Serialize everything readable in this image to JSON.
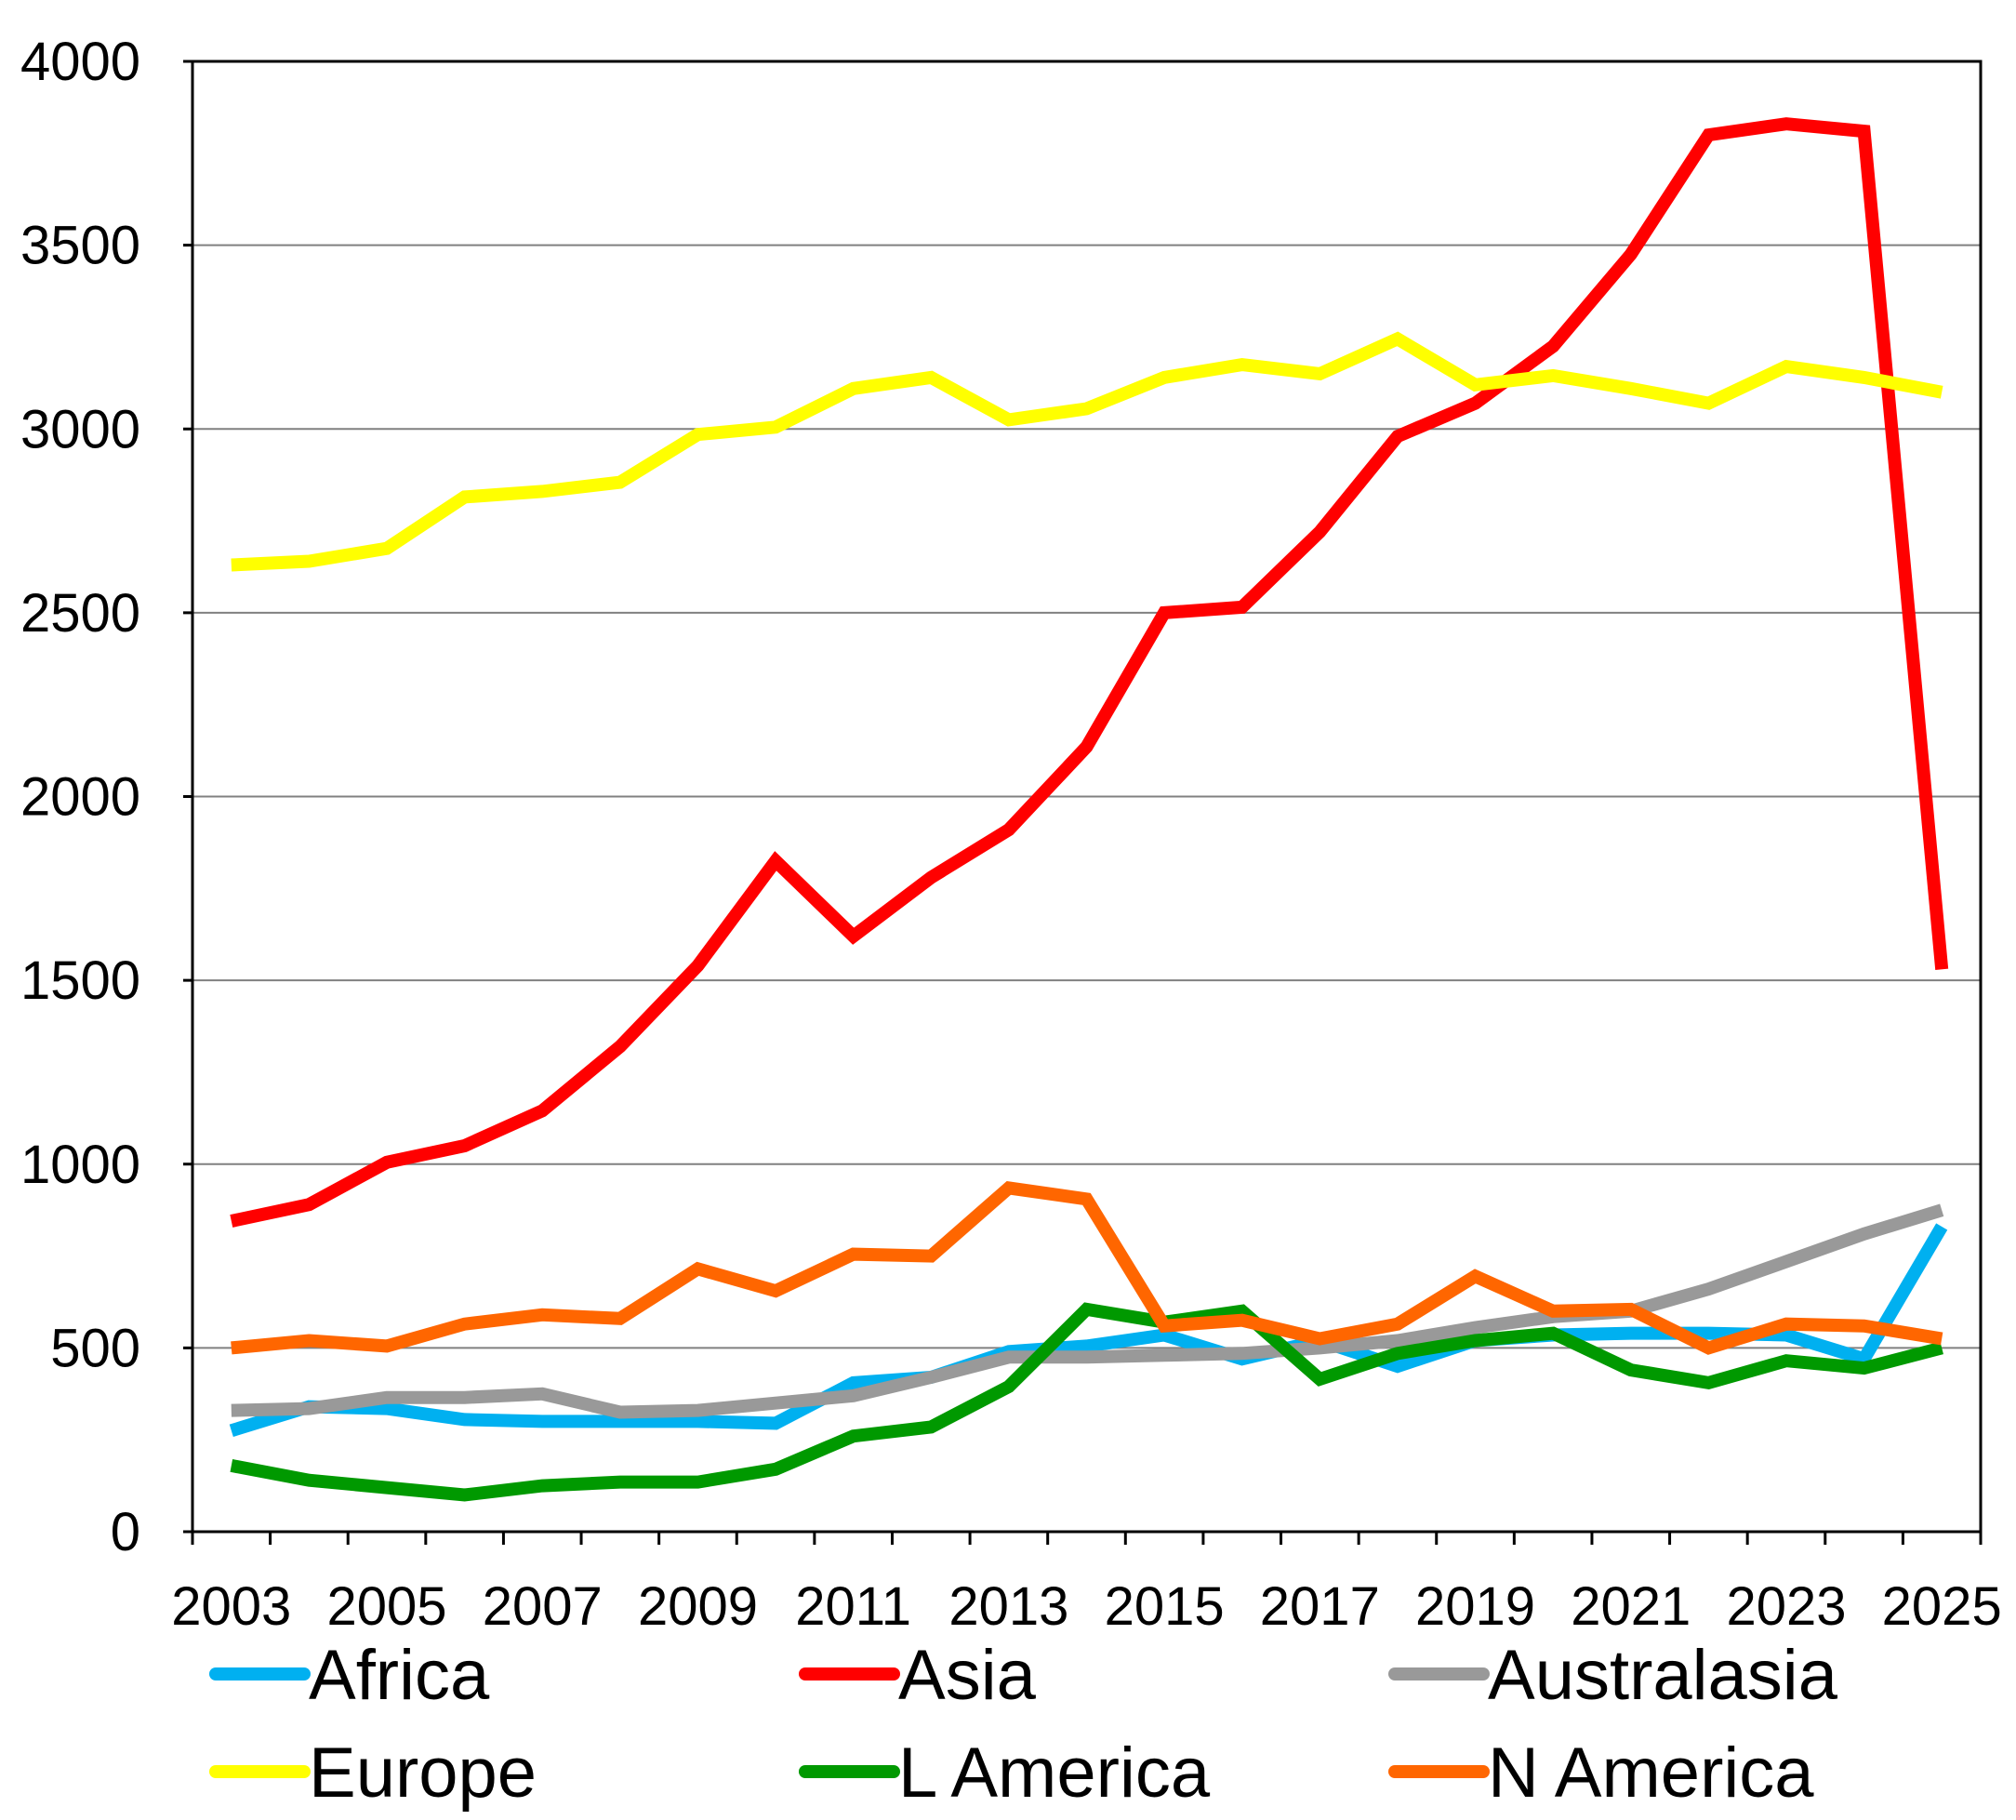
{
  "chart_data": {
    "type": "line",
    "title": "",
    "xlabel": "",
    "ylabel": "",
    "ylim": [
      0,
      4000
    ],
    "yticks": [
      0,
      500,
      1000,
      1500,
      2000,
      2500,
      3000,
      3500,
      4000
    ],
    "ytick_labels": [
      "0",
      "500",
      "1000",
      "1500",
      "2000",
      "2500",
      "3000",
      "3500",
      "4000"
    ],
    "x": [
      2003,
      2004,
      2005,
      2006,
      2007,
      2008,
      2009,
      2010,
      2011,
      2012,
      2013,
      2014,
      2015,
      2016,
      2017,
      2018,
      2019,
      2020,
      2021,
      2022,
      2023,
      2024,
      2025
    ],
    "xtick_labels": [
      "2003",
      "2005",
      "2007",
      "2009",
      "2011",
      "2013",
      "2015",
      "2017",
      "2019",
      "2021",
      "2023",
      "2025"
    ],
    "grid": true,
    "legend_position": "bottom",
    "series": [
      {
        "name": "Africa",
        "color": "#00B0F0",
        "values": [
          275,
          340,
          335,
          305,
          300,
          300,
          300,
          295,
          405,
          420,
          490,
          505,
          535,
          470,
          520,
          450,
          520,
          535,
          540,
          540,
          535,
          470,
          830
        ]
      },
      {
        "name": "Asia",
        "color": "#FF0000",
        "values": [
          845,
          890,
          1005,
          1050,
          1145,
          1320,
          1540,
          1825,
          1620,
          1780,
          1910,
          2135,
          2500,
          2515,
          2720,
          2980,
          3070,
          3225,
          3475,
          3800,
          3830,
          3810,
          1530
        ]
      },
      {
        "name": "Australasia",
        "color": "#999999",
        "values": [
          330,
          335,
          365,
          365,
          375,
          325,
          330,
          350,
          370,
          420,
          475,
          475,
          480,
          485,
          500,
          520,
          555,
          585,
          600,
          660,
          735,
          810,
          875
        ]
      },
      {
        "name": "Europe",
        "color": "#FFFF00",
        "values": [
          2630,
          2640,
          2675,
          2815,
          2830,
          2855,
          2985,
          3005,
          3110,
          3140,
          3025,
          3055,
          3140,
          3175,
          3150,
          3245,
          3120,
          3145,
          3110,
          3070,
          3170,
          3140,
          3100
        ]
      },
      {
        "name": "L America",
        "color": "#009900",
        "values": [
          180,
          140,
          120,
          100,
          125,
          135,
          135,
          170,
          260,
          285,
          395,
          605,
          570,
          600,
          415,
          485,
          520,
          540,
          440,
          405,
          465,
          445,
          500
        ]
      },
      {
        "name": "N America",
        "color": "#FF6600",
        "values": [
          500,
          520,
          505,
          565,
          590,
          580,
          715,
          655,
          755,
          750,
          935,
          905,
          560,
          575,
          525,
          565,
          695,
          600,
          605,
          500,
          565,
          560,
          525
        ]
      }
    ]
  }
}
